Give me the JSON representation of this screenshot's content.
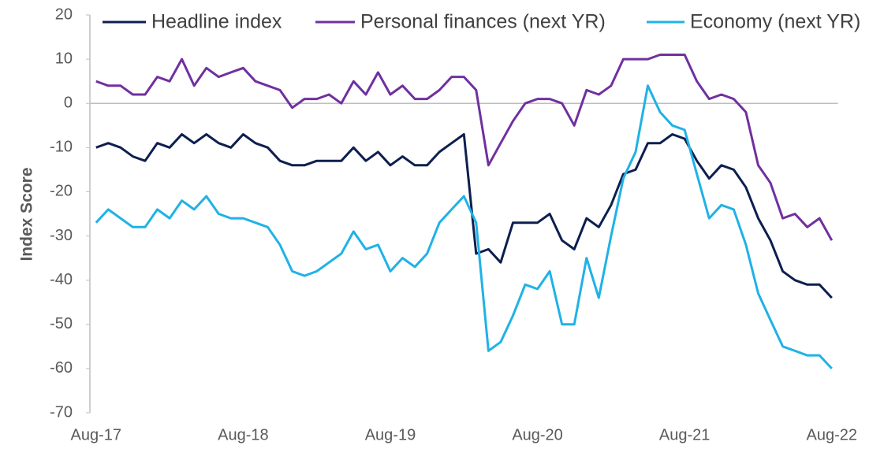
{
  "chart_data": {
    "type": "line",
    "y_label": "Index Score",
    "categories": [
      "Aug-17",
      null,
      null,
      null,
      null,
      null,
      null,
      null,
      null,
      null,
      null,
      null,
      "Aug-18",
      null,
      null,
      null,
      null,
      null,
      null,
      null,
      null,
      null,
      null,
      null,
      "Aug-19",
      null,
      null,
      null,
      null,
      null,
      null,
      null,
      null,
      null,
      null,
      null,
      "Aug-20",
      null,
      null,
      null,
      null,
      null,
      null,
      null,
      null,
      null,
      null,
      null,
      "Aug-21",
      null,
      null,
      null,
      null,
      null,
      null,
      null,
      null,
      null,
      null,
      null,
      "Aug-22"
    ],
    "series": [
      {
        "name": "Headline index",
        "color": "#0d1f4f",
        "values": [
          -10,
          -9,
          -10,
          -12,
          -13,
          -9,
          -10,
          -7,
          -9,
          -7,
          -9,
          -10,
          -7,
          -9,
          -10,
          -13,
          -14,
          -14,
          -13,
          -13,
          -13,
          -10,
          -13,
          -11,
          -14,
          -12,
          -14,
          -14,
          -11,
          -9,
          -7,
          -34,
          -33,
          -36,
          -27,
          -27,
          -27,
          -25,
          -31,
          -33,
          -26,
          -28,
          -23,
          -16,
          -15,
          -9,
          -9,
          -7,
          -8,
          -13,
          -17,
          -14,
          -15,
          -19,
          -26,
          -31,
          -38,
          -40,
          -41,
          -41,
          -44
        ]
      },
      {
        "name": "Personal finances (next YR)",
        "color": "#7030a0",
        "values": [
          5,
          4,
          4,
          2,
          2,
          6,
          5,
          10,
          4,
          8,
          6,
          7,
          8,
          5,
          4,
          3,
          -1,
          1,
          1,
          2,
          0,
          5,
          2,
          7,
          2,
          4,
          1,
          1,
          3,
          6,
          6,
          3,
          -14,
          -9,
          -4,
          0,
          1,
          1,
          0,
          -5,
          3,
          2,
          4,
          10,
          10,
          10,
          11,
          11,
          11,
          5,
          1,
          2,
          1,
          -2,
          -14,
          -18,
          -26,
          -25,
          -28,
          -26,
          -31
        ]
      },
      {
        "name": "Economy (next YR)",
        "color": "#1fb2e6",
        "values": [
          -27,
          -24,
          -26,
          -28,
          -28,
          -24,
          -26,
          -22,
          -24,
          -21,
          -25,
          -26,
          -26,
          -27,
          -28,
          -32,
          -38,
          -39,
          -38,
          -36,
          -34,
          -29,
          -33,
          -32,
          -38,
          -35,
          -37,
          -34,
          -27,
          -24,
          -21,
          -27,
          -56,
          -54,
          -48,
          -41,
          -42,
          -38,
          -50,
          -50,
          -35,
          -44,
          -30,
          -17,
          -11,
          4,
          -2,
          -5,
          -6,
          -16,
          -26,
          -23,
          -24,
          -32,
          -43,
          -49,
          -55,
          -56,
          -57,
          -57,
          -60
        ]
      }
    ],
    "ylim": [
      -70,
      20
    ],
    "yticks": [
      -70,
      -60,
      -50,
      -40,
      -30,
      -20,
      -10,
      0,
      10,
      20
    ],
    "legend": "top"
  }
}
